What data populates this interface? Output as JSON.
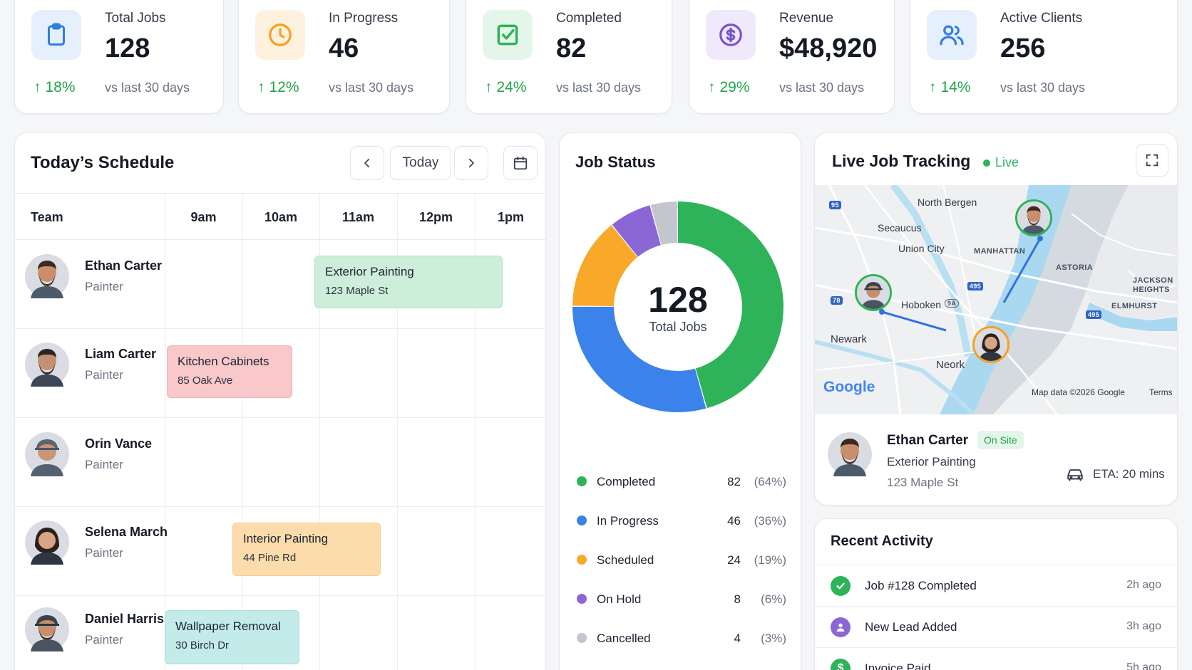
{
  "stats": [
    {
      "label": "Total Jobs",
      "value": "128",
      "change": "18%",
      "compare": "vs last 30 days",
      "icon": "clipboard-icon",
      "color": "#2f7de1",
      "tint": "#e6f0fc"
    },
    {
      "label": "In Progress",
      "value": "46",
      "change": "12%",
      "compare": "vs last 30 days",
      "icon": "clock-icon",
      "color": "#f5a11c",
      "tint": "#fef1de"
    },
    {
      "label": "Completed",
      "value": "82",
      "change": "24%",
      "compare": "vs last 30 days",
      "icon": "checkbox-icon",
      "color": "#2fb35a",
      "tint": "#e4f6ea"
    },
    {
      "label": "Revenue",
      "value": "$48,920",
      "change": "29%",
      "compare": "vs last 30 days",
      "icon": "dollar-icon",
      "color": "#7c52cf",
      "tint": "#efe9fb"
    },
    {
      "label": "Active Clients",
      "value": "256",
      "change": "14%",
      "compare": "vs last 30 days",
      "icon": "users-icon",
      "color": "#2f7de1",
      "tint": "#e6f0fc"
    }
  ],
  "schedule": {
    "title": "Today’s Schedule",
    "today_label": "Today",
    "team_header": "Team",
    "hours": [
      "9am",
      "10am",
      "11am",
      "12pm",
      "1pm"
    ],
    "members": [
      {
        "name": "Ethan Carter",
        "role": "Painter"
      },
      {
        "name": "Liam Carter",
        "role": "Painter"
      },
      {
        "name": "Orin Vance",
        "role": "Painter"
      },
      {
        "name": "Selena March",
        "role": "Painter"
      },
      {
        "name": "Daniel Harris",
        "role": "Painter"
      }
    ],
    "jobs": [
      {
        "title": "Exterior Painting",
        "address": "123 Maple St",
        "color": "#cdeed8",
        "border": "#b5e2c4"
      },
      {
        "title": "Kitchen Cabinets",
        "address": "85 Oak Ave",
        "color": "#f8c8cb",
        "border": "#efb0b5"
      },
      {
        "title": "Interior Painting",
        "address": "44 Pine Rd",
        "color": "#fcdcaa",
        "border": "#f6cd8f"
      },
      {
        "title": "Wallpaper Removal",
        "address": "30 Birch Dr",
        "color": "#c2ebea",
        "border": "#a8dedd"
      }
    ]
  },
  "job_status": {
    "title": "Job Status",
    "center_value": "128",
    "center_label": "Total Jobs",
    "legend": [
      {
        "name": "Completed",
        "value": "82",
        "pct": "(64%)",
        "color": "#2fb35a"
      },
      {
        "name": "In Progress",
        "value": "46",
        "pct": "(36%)",
        "color": "#3b82ea"
      },
      {
        "name": "Scheduled",
        "value": "24",
        "pct": "(19%)",
        "color": "#f8a92a"
      },
      {
        "name": "On Hold",
        "value": "8",
        "pct": "(6%)",
        "color": "#8b67d6"
      },
      {
        "name": "Cancelled",
        "value": "4",
        "pct": "(3%)",
        "color": "#c3c6cc"
      }
    ]
  },
  "tracking": {
    "title": "Live Job Tracking",
    "live_label": "Live",
    "map_labels": {
      "north_bergen": "North Bergen",
      "secaucus": "Secaucus",
      "union_city": "Union City",
      "manhattan": "MANHATTAN",
      "astoria": "ASTORIA",
      "jackson": "JACKSON",
      "heights": "HEIGHTS",
      "elmhurst": "ELMHURST",
      "hoboken": "Hoboken",
      "newark": "Newark",
      "neork": "Neork",
      "google": "Google",
      "attribution": "Map data ©2026 Google",
      "terms": "Terms",
      "shield_95": "95",
      "shield_78": "78",
      "shield_495a": "495",
      "shield_495b": "495",
      "shield_9a": "9A"
    },
    "worker": {
      "name": "Ethan Carter",
      "status": "On Site",
      "job": "Exterior Painting",
      "address": "123 Maple St",
      "eta": "ETA: 20 mins"
    }
  },
  "activity": {
    "title": "Recent Activity",
    "items": [
      {
        "text": "Job #128 Completed",
        "time": "2h ago",
        "icon": "check-icon",
        "color": "#2fb35a"
      },
      {
        "text": "New Lead Added",
        "time": "3h ago",
        "icon": "user-icon",
        "color": "#8b67d6"
      },
      {
        "text": "Invoice Paid",
        "time": "5h ago",
        "icon": "dollar-icon",
        "color": "#2fb35a"
      }
    ]
  }
}
